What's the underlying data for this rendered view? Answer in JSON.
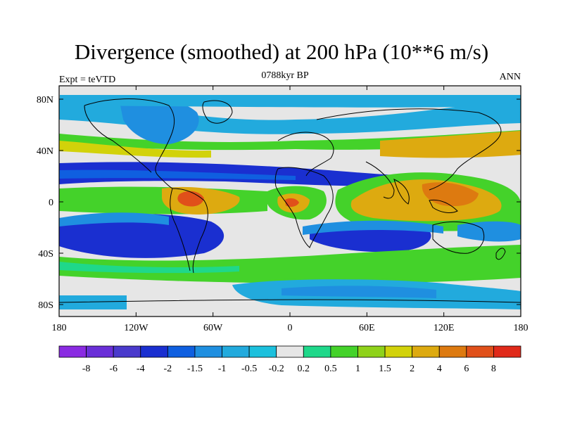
{
  "title": "Divergence (smoothed) at 200 hPa (10**6 m/s)",
  "subtitle_left": "Expt = teVTD",
  "subtitle_center": "0788kyr BP",
  "subtitle_right": "ANN",
  "lat_ticks": [
    "80N",
    "40N",
    "0",
    "40S",
    "80S"
  ],
  "lon_ticks": [
    "180",
    "120W",
    "60W",
    "0",
    "60E",
    "120E",
    "180"
  ],
  "colorbar": {
    "colors": [
      "#8a2be2",
      "#6a2fd8",
      "#4a3acc",
      "#1a2fd0",
      "#0f5fe0",
      "#1f8fe0",
      "#22aadd",
      "#1cc0dd",
      "#e6e6e6",
      "#1fd88a",
      "#44d22a",
      "#8fd21a",
      "#d2d20a",
      "#ddaa10",
      "#dd7a10",
      "#e0501a",
      "#e02a1a"
    ],
    "labels": [
      "-8",
      "-6",
      "-4",
      "-2",
      "-1.5",
      "-1",
      "-0.5",
      "-0.2",
      "0.2",
      "0.5",
      "1",
      "1.5",
      "2",
      "4",
      "6",
      "8"
    ]
  }
}
